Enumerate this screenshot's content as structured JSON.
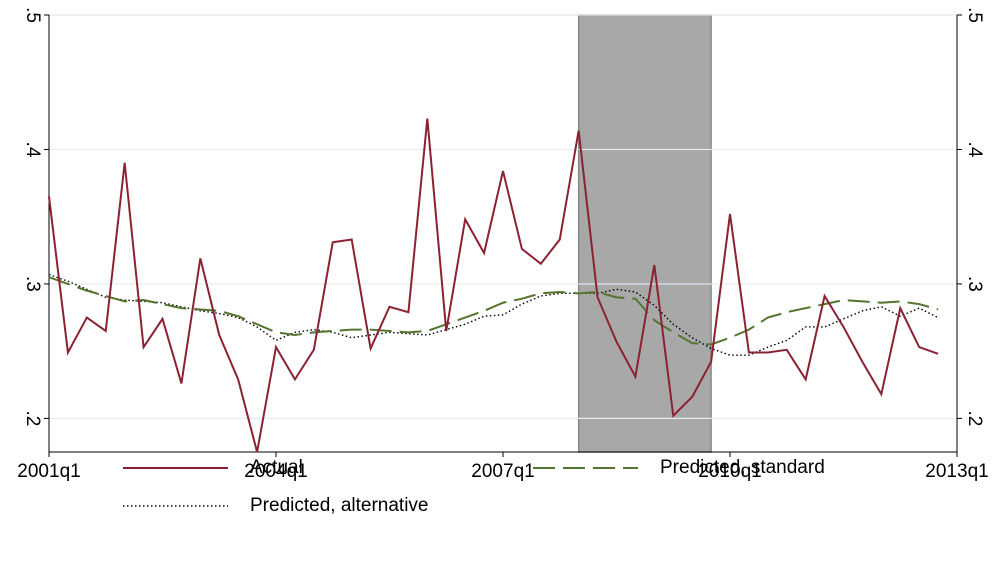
{
  "chart_data": {
    "type": "line",
    "x": [
      164,
      165,
      166,
      167,
      168,
      169,
      170,
      171,
      172,
      173,
      174,
      175,
      176,
      177,
      178,
      179,
      180,
      181,
      182,
      183,
      184,
      185,
      186,
      187,
      188,
      189,
      190,
      191,
      192,
      193,
      194,
      195,
      196,
      197,
      198,
      199,
      200,
      201,
      202,
      203,
      204,
      205,
      206,
      207,
      208,
      209,
      210,
      211
    ],
    "xlim": [
      164,
      212
    ],
    "xticks": [
      {
        "value": 164,
        "label": "2001q1"
      },
      {
        "value": 176,
        "label": "2004q1"
      },
      {
        "value": 188,
        "label": "2007q1"
      },
      {
        "value": 200,
        "label": "2010q1"
      },
      {
        "value": 212,
        "label": "2013q1"
      }
    ],
    "ylim": [
      0.175,
      0.5
    ],
    "yticks": [
      {
        "value": 0.2,
        "label": ".2"
      },
      {
        "value": 0.3,
        "label": ".3"
      },
      {
        "value": 0.4,
        "label": ".4"
      },
      {
        "value": 0.5,
        "label": ".5"
      }
    ],
    "grid": true,
    "shade": {
      "x": [
        192,
        199
      ],
      "color": "#a8a8a8"
    },
    "series": [
      {
        "name": "Actual",
        "color": "#8b2232",
        "dash": "solid",
        "values": [
          0.365,
          0.249,
          0.275,
          0.265,
          0.39,
          0.253,
          0.274,
          0.226,
          0.319,
          0.262,
          0.229,
          0.175,
          0.253,
          0.229,
          0.251,
          0.331,
          0.333,
          0.252,
          0.283,
          0.279,
          0.423,
          0.265,
          0.348,
          0.323,
          0.384,
          0.326,
          0.315,
          0.333,
          0.414,
          0.29,
          0.257,
          0.231,
          0.314,
          0.202,
          0.216,
          0.242,
          0.352,
          0.249,
          0.249,
          0.251,
          0.229,
          0.291,
          0.268,
          0.242,
          0.218,
          0.282,
          0.253,
          0.248
        ]
      },
      {
        "name": "Predicted, standard",
        "color": "#55752f",
        "dash": "dashed",
        "values": [
          0.305,
          0.3,
          0.295,
          0.291,
          0.287,
          0.288,
          0.285,
          0.282,
          0.281,
          0.28,
          0.276,
          0.27,
          0.264,
          0.262,
          0.264,
          0.265,
          0.266,
          0.266,
          0.265,
          0.264,
          0.265,
          0.27,
          0.275,
          0.28,
          0.286,
          0.289,
          0.293,
          0.294,
          0.293,
          0.294,
          0.29,
          0.289,
          0.273,
          0.264,
          0.256,
          0.255,
          0.26,
          0.266,
          0.275,
          0.279,
          0.282,
          0.285,
          0.288,
          0.287,
          0.286,
          0.287,
          0.285,
          0.281
        ]
      },
      {
        "name": "Predicted, alternative",
        "color": "#000000",
        "dash": "dotted",
        "values": [
          0.307,
          0.302,
          0.296,
          0.29,
          0.288,
          0.287,
          0.286,
          0.283,
          0.28,
          0.278,
          0.275,
          0.268,
          0.258,
          0.264,
          0.266,
          0.264,
          0.26,
          0.262,
          0.264,
          0.263,
          0.262,
          0.266,
          0.27,
          0.276,
          0.277,
          0.285,
          0.291,
          0.293,
          0.293,
          0.293,
          0.296,
          0.294,
          0.284,
          0.27,
          0.26,
          0.252,
          0.247,
          0.247,
          0.253,
          0.258,
          0.268,
          0.268,
          0.274,
          0.28,
          0.283,
          0.276,
          0.282,
          0.275
        ]
      }
    ]
  }
}
